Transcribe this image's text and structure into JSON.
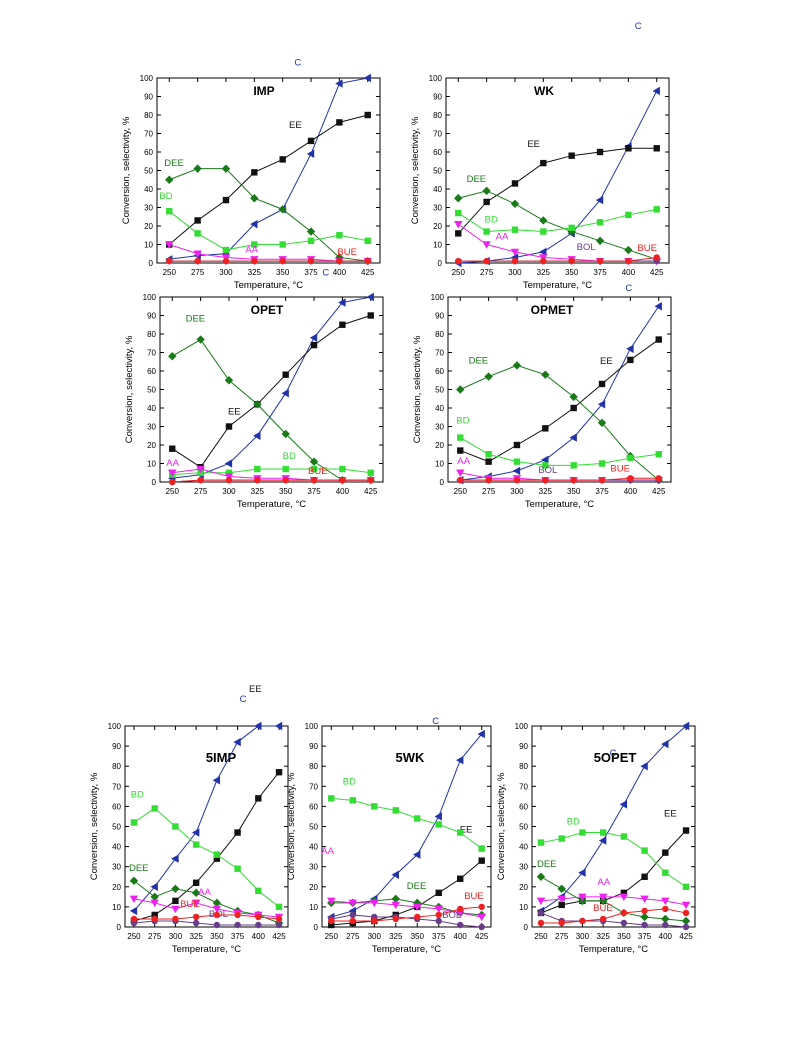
{
  "colors": {
    "C": "#2233aa",
    "EE": "#111111",
    "DEE": "#1a7a1a",
    "BD": "#33dd33",
    "AA": "#ee22ee",
    "BOL": "#6a3d8a",
    "BUE": "#ee2222"
  },
  "markers": {
    "C": "tri-left",
    "EE": "square",
    "DEE": "diamond",
    "BD": "square",
    "AA": "tri-down",
    "BOL": "circle",
    "BUE": "circle"
  },
  "chart_data": [
    {
      "type": "line",
      "title": "IMP",
      "xlabel": "Temperature, °C",
      "ylabel": "Conversion, selectivity, %",
      "x": [
        250,
        275,
        300,
        325,
        350,
        375,
        400,
        425
      ],
      "xticks": [
        250,
        275,
        300,
        325,
        350,
        375,
        400,
        425
      ],
      "ylim": [
        0,
        100
      ],
      "yticks": [
        0,
        10,
        20,
        30,
        40,
        50,
        60,
        70,
        80,
        90,
        100
      ],
      "series": [
        {
          "name": "C",
          "values": [
            2,
            4,
            5,
            21,
            29,
            59,
            97,
            100
          ]
        },
        {
          "name": "EE",
          "values": [
            10,
            23,
            34,
            49,
            56,
            66,
            76,
            80
          ]
        },
        {
          "name": "DEE",
          "values": [
            45,
            51,
            51,
            35,
            29,
            17,
            3,
            1
          ]
        },
        {
          "name": "BD",
          "values": [
            28,
            16,
            7,
            10,
            10,
            12,
            15,
            12
          ]
        },
        {
          "name": "AA",
          "values": [
            10,
            5,
            3,
            2,
            2,
            2,
            1,
            1
          ]
        },
        {
          "name": "BOL",
          "values": [
            1,
            1,
            1,
            1,
            1,
            1,
            1,
            1
          ]
        },
        {
          "name": "BUE",
          "values": [
            1,
            1,
            1,
            1,
            1,
            1,
            1,
            1
          ]
        }
      ]
    },
    {
      "type": "line",
      "title": "WK",
      "xlabel": "Temperature, °C",
      "ylabel": "Conversion, selectivity, %",
      "x": [
        250,
        275,
        300,
        325,
        350,
        375,
        400,
        425
      ],
      "xticks": [
        250,
        275,
        300,
        325,
        350,
        375,
        400,
        425
      ],
      "ylim": [
        0,
        100
      ],
      "yticks": [
        0,
        10,
        20,
        30,
        40,
        50,
        60,
        70,
        80,
        90,
        100
      ],
      "series": [
        {
          "name": "C",
          "values": [
            0,
            1,
            3,
            6,
            16,
            34,
            63,
            93
          ]
        },
        {
          "name": "EE",
          "values": [
            16,
            33,
            43,
            54,
            58,
            60,
            62,
            62
          ]
        },
        {
          "name": "DEE",
          "values": [
            35,
            39,
            32,
            23,
            17,
            12,
            7,
            2
          ]
        },
        {
          "name": "BD",
          "values": [
            27,
            17,
            18,
            17,
            19,
            22,
            26,
            29
          ]
        },
        {
          "name": "AA",
          "values": [
            21,
            10,
            6,
            3,
            2,
            1,
            1,
            1
          ]
        },
        {
          "name": "BOL",
          "values": [
            1,
            1,
            1,
            1,
            1,
            1,
            1,
            1
          ]
        },
        {
          "name": "BUE",
          "values": [
            1,
            1,
            1,
            1,
            1,
            1,
            1,
            3
          ]
        }
      ]
    },
    {
      "type": "line",
      "title": "OPET",
      "xlabel": "Temperature, °C",
      "ylabel": "Conversion, selectivity, %",
      "x": [
        250,
        275,
        300,
        325,
        350,
        375,
        400,
        425
      ],
      "xticks": [
        250,
        275,
        300,
        325,
        350,
        375,
        400,
        425
      ],
      "ylim": [
        0,
        100
      ],
      "yticks": [
        0,
        10,
        20,
        30,
        40,
        50,
        60,
        70,
        80,
        90,
        100
      ],
      "series": [
        {
          "name": "C",
          "values": [
            2,
            4,
            10,
            25,
            48,
            78,
            97,
            100
          ]
        },
        {
          "name": "EE",
          "values": [
            18,
            8,
            30,
            42,
            58,
            74,
            85,
            90
          ]
        },
        {
          "name": "DEE",
          "values": [
            68,
            77,
            55,
            42,
            26,
            11,
            1,
            1
          ]
        },
        {
          "name": "BD",
          "values": [
            4,
            5,
            5,
            7,
            7,
            7,
            7,
            5
          ]
        },
        {
          "name": "AA",
          "values": [
            5,
            7,
            3,
            2,
            2,
            1,
            1,
            1
          ]
        },
        {
          "name": "BOL",
          "values": [
            0,
            1,
            1,
            1,
            1,
            1,
            1,
            1
          ]
        },
        {
          "name": "BUE",
          "values": [
            0,
            1,
            1,
            1,
            1,
            1,
            1,
            1
          ]
        }
      ]
    },
    {
      "type": "line",
      "title": "OPMET",
      "xlabel": "Temperature, °C",
      "ylabel": "Conversion, selectivity, %",
      "x": [
        250,
        275,
        300,
        325,
        350,
        375,
        400,
        425
      ],
      "xticks": [
        250,
        275,
        300,
        325,
        350,
        375,
        400,
        425
      ],
      "ylim": [
        0,
        100
      ],
      "yticks": [
        0,
        10,
        20,
        30,
        40,
        50,
        60,
        70,
        80,
        90,
        100
      ],
      "series": [
        {
          "name": "C",
          "values": [
            1,
            3,
            6,
            12,
            24,
            42,
            72,
            95
          ]
        },
        {
          "name": "EE",
          "values": [
            17,
            11,
            20,
            29,
            40,
            53,
            66,
            77
          ]
        },
        {
          "name": "DEE",
          "values": [
            50,
            57,
            63,
            58,
            46,
            32,
            14,
            1
          ]
        },
        {
          "name": "BD",
          "values": [
            24,
            15,
            11,
            9,
            9,
            10,
            13,
            15
          ]
        },
        {
          "name": "AA",
          "values": [
            5,
            2,
            2,
            1,
            1,
            1,
            1,
            1
          ]
        },
        {
          "name": "BOL",
          "values": [
            1,
            1,
            1,
            1,
            1,
            1,
            1,
            1
          ]
        },
        {
          "name": "BUE",
          "values": [
            1,
            1,
            1,
            1,
            1,
            1,
            2,
            2
          ]
        }
      ]
    },
    {
      "type": "line",
      "title": "5IMP",
      "xlabel": "Temperature, °C",
      "ylabel": "Conversion, selectivity, %",
      "x": [
        250,
        275,
        300,
        325,
        350,
        375,
        400,
        425
      ],
      "xticks": [
        250,
        275,
        300,
        325,
        350,
        375,
        400,
        425
      ],
      "ylim": [
        0,
        100
      ],
      "yticks": [
        0,
        10,
        20,
        30,
        40,
        50,
        60,
        70,
        80,
        90,
        100
      ],
      "series": [
        {
          "name": "C",
          "values": [
            8,
            20,
            34,
            47,
            73,
            92,
            100,
            100
          ]
        },
        {
          "name": "EE",
          "values": [
            3,
            6,
            13,
            22,
            34,
            47,
            64,
            77
          ]
        },
        {
          "name": "DEE",
          "values": [
            23,
            15,
            19,
            17,
            12,
            8,
            6,
            2
          ]
        },
        {
          "name": "BD",
          "values": [
            52,
            59,
            50,
            41,
            36,
            29,
            18,
            10
          ]
        },
        {
          "name": "AA",
          "values": [
            14,
            12,
            9,
            12,
            9,
            7,
            6,
            5
          ]
        },
        {
          "name": "BOL",
          "values": [
            2,
            3,
            3,
            2,
            1,
            1,
            1,
            1
          ]
        },
        {
          "name": "BUE",
          "values": [
            4,
            4,
            4,
            5,
            6,
            6,
            5,
            4
          ]
        }
      ]
    },
    {
      "type": "line",
      "title": "5WK",
      "xlabel": "Temperature, °C",
      "ylabel": "Conversion, selectivity, %",
      "x": [
        250,
        275,
        300,
        325,
        350,
        375,
        400,
        425
      ],
      "xticks": [
        250,
        275,
        300,
        325,
        350,
        375,
        400,
        425
      ],
      "ylim": [
        0,
        100
      ],
      "yticks": [
        0,
        10,
        20,
        30,
        40,
        50,
        60,
        70,
        80,
        90,
        100
      ],
      "series": [
        {
          "name": "C",
          "values": [
            5,
            8,
            14,
            26,
            36,
            55,
            83,
            96
          ]
        },
        {
          "name": "EE",
          "values": [
            1,
            2,
            3,
            6,
            10,
            17,
            24,
            33
          ]
        },
        {
          "name": "DEE",
          "values": [
            12,
            12,
            13,
            14,
            12,
            10,
            7,
            6
          ]
        },
        {
          "name": "BD",
          "values": [
            64,
            63,
            60,
            58,
            54,
            51,
            47,
            39
          ]
        },
        {
          "name": "AA",
          "values": [
            13,
            12,
            12,
            11,
            10,
            9,
            7,
            5
          ]
        },
        {
          "name": "BOL",
          "values": [
            4,
            6,
            5,
            5,
            4,
            3,
            1,
            0
          ]
        },
        {
          "name": "BUE",
          "values": [
            3,
            3,
            3,
            4,
            5,
            6,
            9,
            10
          ]
        }
      ]
    },
    {
      "type": "line",
      "title": "5OPET",
      "xlabel": "Temperature, °C",
      "ylabel": "Conversion, selectivity, %",
      "x": [
        250,
        275,
        300,
        325,
        350,
        375,
        400,
        425
      ],
      "xticks": [
        250,
        275,
        300,
        325,
        350,
        375,
        400,
        425
      ],
      "ylim": [
        0,
        100
      ],
      "yticks": [
        0,
        10,
        20,
        30,
        40,
        50,
        60,
        70,
        80,
        90,
        100
      ],
      "series": [
        {
          "name": "C",
          "values": [
            8,
            15,
            27,
            43,
            61,
            80,
            91,
            100
          ]
        },
        {
          "name": "EE",
          "values": [
            7,
            11,
            13,
            13,
            17,
            25,
            37,
            48
          ]
        },
        {
          "name": "DEE",
          "values": [
            25,
            19,
            13,
            13,
            7,
            5,
            4,
            3
          ]
        },
        {
          "name": "BD",
          "values": [
            42,
            44,
            47,
            47,
            45,
            38,
            27,
            20
          ]
        },
        {
          "name": "AA",
          "values": [
            13,
            14,
            15,
            15,
            15,
            14,
            13,
            11
          ]
        },
        {
          "name": "BOL",
          "values": [
            7,
            3,
            3,
            3,
            2,
            1,
            1,
            0
          ]
        },
        {
          "name": "BUE",
          "values": [
            2,
            2,
            3,
            4,
            7,
            8,
            9,
            7
          ]
        }
      ]
    }
  ]
}
